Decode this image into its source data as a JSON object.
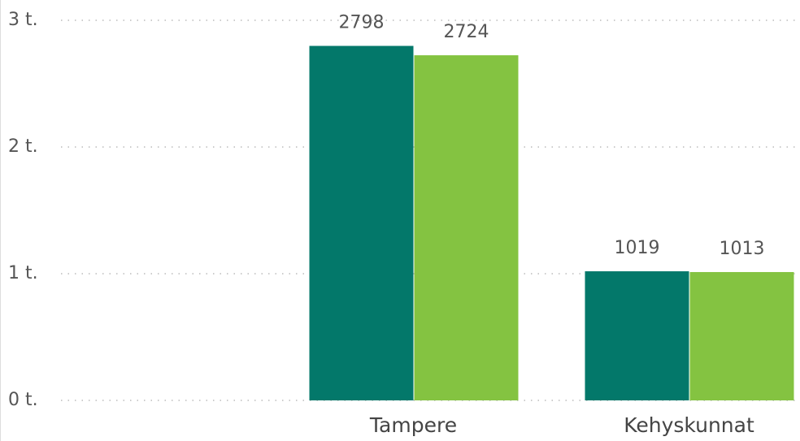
{
  "chart_data": {
    "type": "bar",
    "categories": [
      null,
      "Tampere",
      "Kehyskunnat"
    ],
    "series": [
      {
        "color": "#03786a",
        "values": [
          null,
          2798,
          1019
        ]
      },
      {
        "color": "#84c341",
        "values": [
          null,
          2724,
          1013
        ]
      }
    ],
    "ylim": [
      0,
      3000
    ],
    "yticks": [
      {
        "value": 0,
        "label": "0 t."
      },
      {
        "value": 1000,
        "label": "1 t."
      },
      {
        "value": 2000,
        "label": "2 t."
      },
      {
        "value": 3000,
        "label": "3 t."
      }
    ],
    "grid": true
  }
}
